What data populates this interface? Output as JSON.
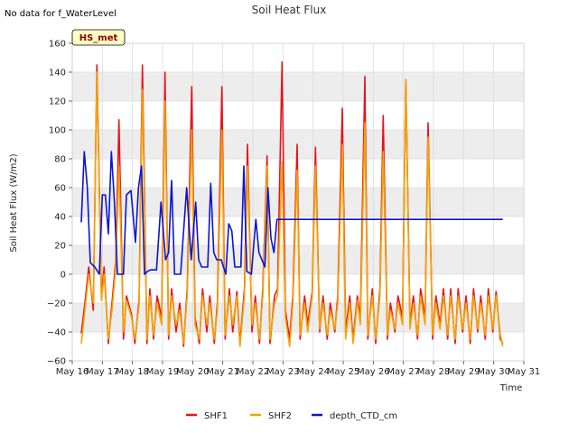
{
  "chart_data": {
    "type": "line",
    "title": "Soil Heat Flux",
    "note": "No data for f_WaterLevel",
    "badge": "HS_met",
    "xlabel": "Time",
    "ylabel": "Soil Heat Flux (W/m2)",
    "xlim": [
      16,
      31
    ],
    "ylim": [
      -60,
      160
    ],
    "yticks": [
      -60,
      -40,
      -20,
      0,
      20,
      40,
      60,
      80,
      100,
      120,
      140,
      160
    ],
    "ytick_labels": [
      "−60",
      "−40",
      "−20",
      "0",
      "20",
      "40",
      "60",
      "80",
      "100",
      "120",
      "140",
      "160"
    ],
    "xticks": [
      16,
      17,
      18,
      19,
      20,
      21,
      22,
      23,
      24,
      25,
      26,
      27,
      28,
      29,
      30,
      31
    ],
    "xtick_labels": [
      "May 16",
      "May 17",
      "May 18",
      "May 19",
      "May 20",
      "May 21",
      "May 22",
      "May 23",
      "May 24",
      "May 25",
      "May 26",
      "May 27",
      "May 28",
      "May 29",
      "May 30",
      "May 31"
    ],
    "grid": true,
    "legend_position": "bottom-center",
    "colors": {
      "SHF1": "#e8131a",
      "SHF2": "#f5a300",
      "depth_CTD_cm": "#0a14d6",
      "band": "#ededed",
      "plot_bg": "#ffffff"
    },
    "series": [
      {
        "name": "SHF1",
        "x": [
          16.3,
          16.42,
          16.55,
          16.7,
          16.82,
          16.97,
          17.06,
          17.2,
          17.32,
          17.45,
          17.55,
          17.7,
          17.8,
          17.97,
          18.08,
          18.22,
          18.33,
          18.48,
          18.58,
          18.7,
          18.82,
          18.97,
          19.08,
          19.2,
          19.3,
          19.45,
          19.57,
          19.7,
          19.82,
          19.97,
          20.08,
          20.22,
          20.33,
          20.47,
          20.57,
          20.72,
          20.82,
          20.97,
          21.08,
          21.22,
          21.33,
          21.47,
          21.57,
          21.72,
          21.82,
          21.97,
          22.08,
          22.22,
          22.33,
          22.47,
          22.57,
          22.72,
          22.82,
          22.97,
          23.08,
          23.22,
          23.33,
          23.47,
          23.57,
          23.72,
          23.82,
          23.97,
          24.08,
          24.22,
          24.33,
          24.47,
          24.57,
          24.72,
          24.82,
          24.97,
          25.08,
          25.22,
          25.33,
          25.47,
          25.57,
          25.72,
          25.82,
          25.97,
          26.08,
          26.22,
          26.33,
          26.47,
          26.57,
          26.72,
          26.82,
          26.97,
          27.08,
          27.22,
          27.33,
          27.47,
          27.57,
          27.72,
          27.82,
          27.97,
          28.08,
          28.22,
          28.33,
          28.47,
          28.57,
          28.72,
          28.82,
          28.97,
          29.08,
          29.22,
          29.33,
          29.47,
          29.57,
          29.72,
          29.82,
          29.97,
          30.08,
          30.22,
          30.3
        ],
        "values": [
          -41,
          -20,
          5,
          -25,
          145,
          -15,
          5,
          -48,
          -20,
          10,
          107,
          -45,
          -15,
          -28,
          -48,
          -18,
          145,
          -48,
          -10,
          -45,
          -15,
          -30,
          140,
          -45,
          -10,
          -40,
          -20,
          -50,
          -10,
          130,
          -30,
          -48,
          -10,
          -40,
          -15,
          -48,
          -20,
          130,
          -45,
          -10,
          -40,
          -12,
          -48,
          -10,
          90,
          -40,
          -15,
          -48,
          -10,
          82,
          -48,
          -15,
          -10,
          147,
          -25,
          -45,
          -15,
          90,
          -45,
          -15,
          -35,
          -12,
          88,
          -40,
          -15,
          -45,
          -20,
          -40,
          -15,
          115,
          -40,
          -15,
          -45,
          -15,
          -30,
          137,
          -45,
          -10,
          -48,
          -10,
          110,
          -45,
          -20,
          -40,
          -15,
          -30,
          135,
          -35,
          -15,
          -45,
          -10,
          -30,
          105,
          -45,
          -15,
          -35,
          -10,
          -45,
          -10,
          -48,
          -10,
          -40,
          -15,
          -48,
          -10,
          -40,
          -15,
          -45,
          -10,
          -40,
          -12,
          -45,
          -48
        ]
      },
      {
        "name": "SHF2",
        "x": [
          16.3,
          16.42,
          16.55,
          16.7,
          16.82,
          16.97,
          17.06,
          17.2,
          17.32,
          17.45,
          17.55,
          17.7,
          17.8,
          17.97,
          18.08,
          18.22,
          18.33,
          18.48,
          18.58,
          18.7,
          18.82,
          18.97,
          19.08,
          19.2,
          19.3,
          19.45,
          19.57,
          19.7,
          19.82,
          19.97,
          20.08,
          20.22,
          20.33,
          20.47,
          20.57,
          20.72,
          20.82,
          20.97,
          21.08,
          21.22,
          21.33,
          21.47,
          21.57,
          21.72,
          21.82,
          21.97,
          22.08,
          22.22,
          22.33,
          22.47,
          22.57,
          22.72,
          22.82,
          22.97,
          23.08,
          23.22,
          23.33,
          23.47,
          23.57,
          23.72,
          23.82,
          23.97,
          24.08,
          24.22,
          24.33,
          24.47,
          24.57,
          24.72,
          24.82,
          24.97,
          25.08,
          25.22,
          25.33,
          25.47,
          25.57,
          25.72,
          25.82,
          25.97,
          26.08,
          26.22,
          26.33,
          26.47,
          26.57,
          26.72,
          26.82,
          26.97,
          27.08,
          27.22,
          27.33,
          27.47,
          27.57,
          27.72,
          27.82,
          27.97,
          28.08,
          28.22,
          28.33,
          28.47,
          28.57,
          28.72,
          28.82,
          28.97,
          29.08,
          29.22,
          29.33,
          29.47,
          29.57,
          29.72,
          29.82,
          29.97,
          30.08,
          30.22,
          30.3
        ],
        "values": [
          -48,
          -25,
          0,
          -20,
          140,
          -18,
          0,
          -45,
          -25,
          5,
          75,
          -40,
          -18,
          -30,
          -45,
          -22,
          128,
          -45,
          -15,
          -42,
          -20,
          -35,
          120,
          -42,
          -15,
          -35,
          -25,
          -48,
          -15,
          100,
          -35,
          -45,
          -15,
          -35,
          -20,
          -45,
          -25,
          100,
          -42,
          -15,
          -35,
          -15,
          -50,
          -15,
          75,
          -35,
          -20,
          -45,
          -15,
          75,
          -45,
          -20,
          -15,
          78,
          -30,
          -50,
          -20,
          72,
          -42,
          -20,
          -40,
          -15,
          75,
          -38,
          -20,
          -42,
          -25,
          -38,
          -20,
          90,
          -45,
          -20,
          -48,
          -18,
          -35,
          105,
          -42,
          -15,
          -45,
          -15,
          85,
          -42,
          -25,
          -38,
          -20,
          -35,
          135,
          -38,
          -20,
          -42,
          -15,
          -35,
          95,
          -42,
          -20,
          -38,
          -15,
          -42,
          -15,
          -45,
          -15,
          -38,
          -20,
          -45,
          -15,
          -38,
          -20,
          -42,
          -15,
          -38,
          -15,
          -42,
          -50
        ]
      },
      {
        "name": "depth_CTD_cm",
        "x": [
          16.3,
          16.4,
          16.5,
          16.6,
          16.75,
          16.9,
          17.0,
          17.1,
          17.2,
          17.3,
          17.4,
          17.5,
          17.6,
          17.7,
          17.8,
          17.95,
          18.1,
          18.2,
          18.3,
          18.4,
          18.5,
          18.6,
          18.7,
          18.8,
          18.95,
          19.1,
          19.2,
          19.3,
          19.4,
          19.5,
          19.6,
          19.7,
          19.8,
          19.95,
          20.1,
          20.2,
          20.3,
          20.4,
          20.5,
          20.6,
          20.7,
          20.8,
          20.95,
          21.1,
          21.2,
          21.3,
          21.4,
          21.5,
          21.6,
          21.7,
          21.8,
          21.95,
          22.1,
          22.2,
          22.3,
          22.4,
          22.5,
          22.6,
          22.7,
          22.8,
          22.95,
          23.1,
          23.2,
          23.3,
          23.4,
          23.5,
          23.6,
          23.7,
          23.8,
          23.95,
          26.95,
          27.05,
          27.15,
          27.25,
          27.35,
          27.45,
          27.55,
          27.65,
          27.75,
          27.85,
          27.95,
          28.05,
          28.15,
          28.25,
          28.35,
          28.45,
          28.55,
          28.65,
          28.75,
          28.85,
          28.95,
          29.05,
          29.15,
          29.25,
          29.35,
          29.45,
          29.55,
          29.65,
          29.75,
          29.85,
          29.95,
          30.05,
          30.15,
          30.3
        ],
        "values": [
          36,
          85,
          60,
          8,
          5,
          0,
          55,
          55,
          28,
          85,
          50,
          0,
          0,
          0,
          55,
          58,
          22,
          60,
          75,
          0,
          2,
          3,
          3,
          3,
          50,
          10,
          15,
          65,
          0,
          0,
          0,
          30,
          60,
          10,
          50,
          10,
          5,
          5,
          5,
          63,
          15,
          10,
          10,
          0,
          35,
          30,
          5,
          5,
          5,
          75,
          2,
          0,
          38,
          15,
          10,
          5,
          60,
          25,
          15,
          38,
          38,
          38,
          38,
          38,
          38,
          38,
          38,
          38,
          38,
          38,
          38,
          38,
          38,
          38,
          38,
          38,
          38,
          38,
          38,
          38,
          38,
          38,
          38,
          38,
          38,
          38,
          38,
          38,
          38,
          38,
          38,
          38,
          38,
          38,
          38,
          38,
          38,
          38,
          38,
          38,
          38,
          38,
          38,
          38
        ]
      }
    ]
  }
}
